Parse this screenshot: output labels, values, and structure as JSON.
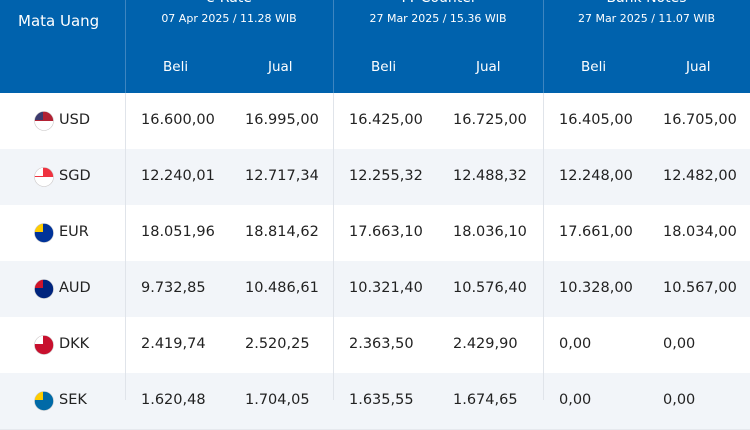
{
  "header": {
    "currency_label": "Mata Uang",
    "groups": [
      {
        "title": "e-Rate",
        "date": "07 Apr 2025 / 11.28 WIB",
        "buy": "Beli",
        "sell": "Jual"
      },
      {
        "title": "TT Counter",
        "date": "27 Mar 2025 / 15.36 WIB",
        "buy": "Beli",
        "sell": "Jual"
      },
      {
        "title": "Bank Notes",
        "date": "27 Mar 2025 / 11.07 WIB",
        "buy": "Beli",
        "sell": "Jual"
      }
    ]
  },
  "rows": [
    {
      "currency": "USD",
      "values": [
        "16.600,00",
        "16.995,00",
        "16.425,00",
        "16.725,00",
        "16.405,00",
        "16.705,00"
      ]
    },
    {
      "currency": "SGD",
      "values": [
        "12.240,01",
        "12.717,34",
        "12.255,32",
        "12.488,32",
        "12.248,00",
        "12.482,00"
      ]
    },
    {
      "currency": "EUR",
      "values": [
        "18.051,96",
        "18.814,62",
        "17.663,10",
        "18.036,10",
        "17.661,00",
        "18.034,00"
      ]
    },
    {
      "currency": "AUD",
      "values": [
        "9.732,85",
        "10.486,61",
        "10.321,40",
        "10.576,40",
        "10.328,00",
        "10.567,00"
      ]
    },
    {
      "currency": "DKK",
      "values": [
        "2.419,74",
        "2.520,25",
        "2.363,50",
        "2.429,90",
        "0,00",
        "0,00"
      ]
    },
    {
      "currency": "SEK",
      "values": [
        "1.620,48",
        "1.704,05",
        "1.635,55",
        "1.674,65",
        "0,00",
        "0,00"
      ]
    }
  ]
}
